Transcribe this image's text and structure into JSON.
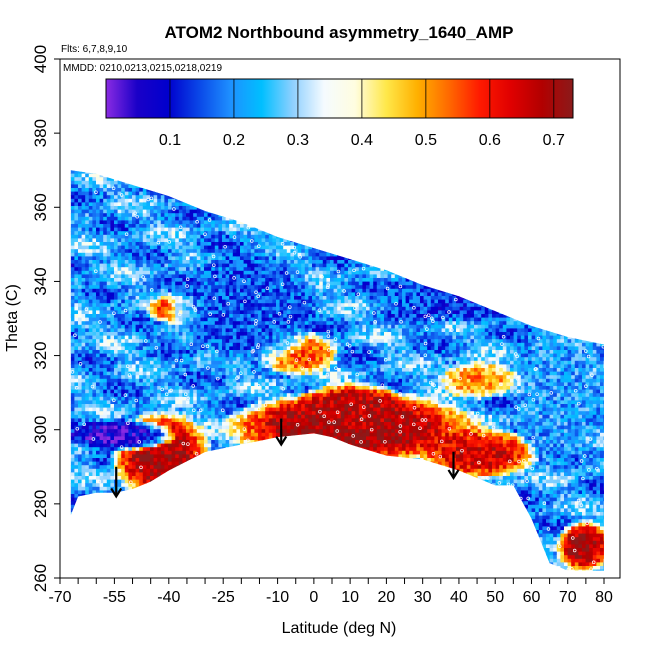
{
  "chart_data": {
    "type": "heatmap",
    "title": "ATOM2 Northbound asymmetry_1640_AMP",
    "subtitle_flights": "Flts: 6,7,8,9,10",
    "subtitle_dates": "MMDD: 0210,0213,0215,0218,0219",
    "xlabel": "Latitude (deg N)",
    "ylabel": "Theta (C)",
    "xlim": [
      -70,
      80
    ],
    "ylim": [
      260,
      400
    ],
    "x_ticks": [
      {
        "value": -70,
        "label": "-70"
      },
      {
        "value": -55,
        "label": "-55"
      },
      {
        "value": -40,
        "label": "-40"
      },
      {
        "value": -25,
        "label": "-25"
      },
      {
        "value": -10,
        "label": "-10"
      },
      {
        "value": 0,
        "label": "0"
      },
      {
        "value": 10,
        "label": "10"
      },
      {
        "value": 20,
        "label": "20"
      },
      {
        "value": 30,
        "label": "30"
      },
      {
        "value": 40,
        "label": "40"
      },
      {
        "value": 50,
        "label": "50"
      },
      {
        "value": 60,
        "label": "60"
      },
      {
        "value": 70,
        "label": "70"
      },
      {
        "value": 80,
        "label": "80"
      }
    ],
    "y_ticks": [
      {
        "value": 260,
        "label": "260"
      },
      {
        "value": 280,
        "label": "280"
      },
      {
        "value": 300,
        "label": "300"
      },
      {
        "value": 320,
        "label": "320"
      },
      {
        "value": 340,
        "label": "340"
      },
      {
        "value": 360,
        "label": "360"
      },
      {
        "value": 380,
        "label": "380"
      },
      {
        "value": 400,
        "label": "400"
      }
    ],
    "colorbar": {
      "range": [
        0.0,
        0.73
      ],
      "ticks": [
        {
          "value": 0.1,
          "label": "0.1"
        },
        {
          "value": 0.2,
          "label": "0.2"
        },
        {
          "value": 0.3,
          "label": "0.3"
        },
        {
          "value": 0.4,
          "label": "0.4"
        },
        {
          "value": 0.5,
          "label": "0.5"
        },
        {
          "value": 0.6,
          "label": "0.6"
        },
        {
          "value": 0.7,
          "label": "0.7"
        }
      ],
      "colors": [
        "#8a2be2",
        "#1a00c8",
        "#0000cd",
        "#0a48e8",
        "#1e90ff",
        "#00bfff",
        "#8fd0ff",
        "#f5fbff",
        "#fffde0",
        "#ffe84a",
        "#ffb000",
        "#ff6a00",
        "#ff1a00",
        "#e00000",
        "#b20000",
        "#8b1a1a"
      ]
    },
    "upper_boundary": [
      [
        -67,
        370
      ],
      [
        -60,
        369
      ],
      [
        -50,
        366
      ],
      [
        -40,
        363
      ],
      [
        -30,
        359
      ],
      [
        -20,
        356
      ],
      [
        -10,
        352
      ],
      [
        0,
        349
      ],
      [
        10,
        346
      ],
      [
        20,
        343
      ],
      [
        30,
        339
      ],
      [
        40,
        336
      ],
      [
        50,
        332
      ],
      [
        60,
        328
      ],
      [
        70,
        325
      ],
      [
        80,
        323
      ]
    ],
    "lower_boundary": [
      [
        -67,
        277
      ],
      [
        -65,
        282
      ],
      [
        -60,
        283
      ],
      [
        -55,
        283
      ],
      [
        -50,
        284
      ],
      [
        -45,
        286
      ],
      [
        -40,
        289
      ],
      [
        -30,
        294
      ],
      [
        -20,
        296
      ],
      [
        -10,
        298
      ],
      [
        0,
        299
      ],
      [
        5,
        298
      ],
      [
        10,
        296
      ],
      [
        20,
        293
      ],
      [
        30,
        292
      ],
      [
        40,
        289
      ],
      [
        50,
        285
      ],
      [
        55,
        285
      ],
      [
        60,
        276
      ],
      [
        65,
        264
      ],
      [
        70,
        262
      ],
      [
        80,
        262
      ]
    ],
    "field_features": [
      {
        "lat": [
          -55,
          -30
        ],
        "theta": [
          282,
          305
        ],
        "value": 0.7
      },
      {
        "lat": [
          -25,
          45
        ],
        "theta": [
          292,
          310
        ],
        "value": 0.72
      },
      {
        "lat": [
          30,
          60
        ],
        "theta": [
          288,
          300
        ],
        "value": 0.65
      },
      {
        "lat": [
          -5,
          25
        ],
        "theta": [
          300,
          312
        ],
        "value": 0.68
      },
      {
        "lat": [
          -45,
          -30
        ],
        "theta": [
          330,
          336
        ],
        "value": 0.6
      },
      {
        "lat": [
          -15,
          5
        ],
        "theta": [
          316,
          326
        ],
        "value": 0.55
      },
      {
        "lat": [
          35,
          55
        ],
        "theta": [
          310,
          318
        ],
        "value": 0.5
      },
      {
        "lat": [
          68,
          80
        ],
        "theta": [
          263,
          275
        ],
        "value": 0.7
      },
      {
        "lat": [
          -67,
          -40
        ],
        "theta": [
          296,
          302
        ],
        "value": 0.05
      },
      {
        "lat": [
          -40,
          0
        ],
        "theta": [
          318,
          350
        ],
        "value": 0.15
      },
      {
        "lat": [
          20,
          60
        ],
        "theta": [
          330,
          345
        ],
        "value": 0.12
      },
      {
        "lat": [
          55,
          80
        ],
        "theta": [
          290,
          330
        ],
        "value": 0.22
      }
    ],
    "arrows": [
      {
        "lat": -54.5,
        "theta_from": 290,
        "theta_to": 282
      },
      {
        "lat": -9,
        "theta_from": 303,
        "theta_to": 296
      },
      {
        "lat": 38.5,
        "theta_from": 294,
        "theta_to": 287
      }
    ]
  }
}
